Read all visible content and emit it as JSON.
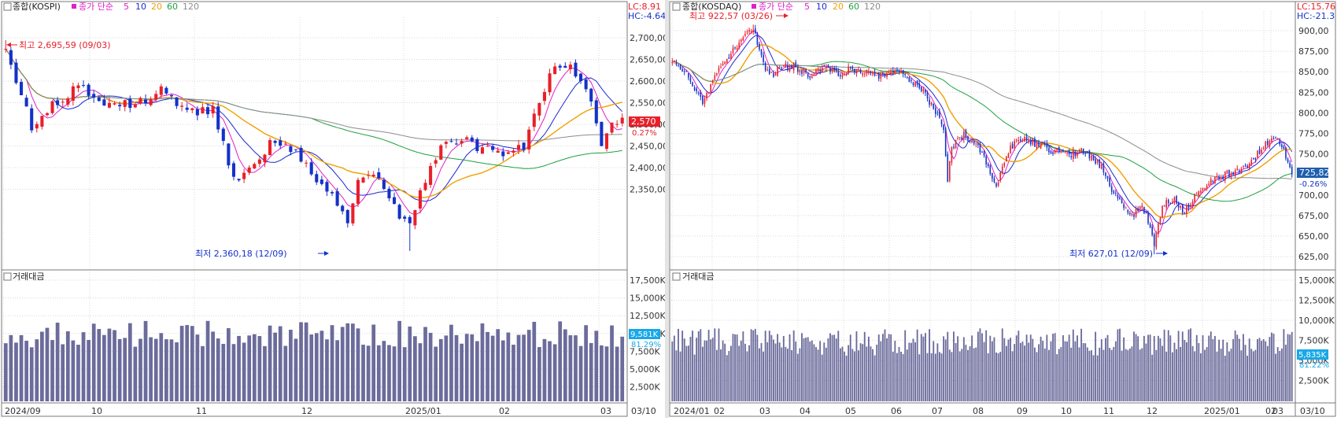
{
  "colors": {
    "up": "#e8202a",
    "down": "#1432c8",
    "ma5": "#e020c8",
    "ma10": "#1c2ad0",
    "ma20": "#f0a000",
    "ma60": "#20a040",
    "ma120": "#8c8c8c",
    "volume": "#6b6b9c",
    "grid": "#d8d8d8",
    "frame": "#7a7a7a",
    "axis_text": "#333333",
    "current_tag_left": "#e8202a",
    "current_tag_right": "#1f5fae",
    "vol_tag": "#18a8e8"
  },
  "chart_data": [
    {
      "type": "candlestick",
      "title": "종합(KOSPI)",
      "legend": {
        "label": "종가 단순",
        "periods": [
          "5",
          "10",
          "20",
          "60",
          "120"
        ]
      },
      "corner_info": {
        "lc": "LC:8.91",
        "hc": "HC:-4.64"
      },
      "y_ticks": [
        "2,700,00",
        "2,650,00",
        "2,600,00",
        "2,550,00",
        "2,500,00",
        "2,450,00",
        "2,400,00",
        "2,350,00"
      ],
      "ylim": [
        2340,
        2722
      ],
      "current_price": {
        "label": "2,570",
        "value": 2570,
        "change": "0.27%"
      },
      "annotations": {
        "high": {
          "text": "최고 2,695,59 (09/03)",
          "value": 2695.59
        },
        "low": {
          "text": "최저 2,360,18 (12/09)",
          "value": 2360.18
        }
      },
      "x_labels": [
        "2024/09",
        "10",
        "11",
        "12",
        "2025/01",
        "02",
        "03",
        "03/10"
      ],
      "key_points": [
        [
          0,
          2680
        ],
        [
          5,
          2560
        ],
        [
          10,
          2600
        ],
        [
          14,
          2620
        ],
        [
          20,
          2590
        ],
        [
          26,
          2600
        ],
        [
          30,
          2615
        ],
        [
          36,
          2580
        ],
        [
          40,
          2585
        ],
        [
          44,
          2470
        ],
        [
          47,
          2490
        ],
        [
          52,
          2540
        ],
        [
          56,
          2520
        ],
        [
          60,
          2465
        ],
        [
          63,
          2445
        ],
        [
          66,
          2400
        ],
        [
          68,
          2470
        ],
        [
          71,
          2490
        ],
        [
          74,
          2440
        ],
        [
          78,
          2400
        ],
        [
          82,
          2500
        ],
        [
          86,
          2540
        ],
        [
          90,
          2530
        ],
        [
          94,
          2520
        ],
        [
          97,
          2515
        ],
        [
          100,
          2530
        ],
        [
          103,
          2590
        ],
        [
          106,
          2660
        ],
        [
          109,
          2650
        ],
        [
          111,
          2630
        ],
        [
          113,
          2600
        ],
        [
          115,
          2520
        ],
        [
          117,
          2560
        ],
        [
          119,
          2570
        ]
      ],
      "volume": {
        "label": "거래대금",
        "y_ticks": [
          "17,500K",
          "15,000K",
          "12,500K",
          "10,000K",
          "7,500K",
          "5,000K",
          "2,500K"
        ],
        "ylim": [
          0,
          17500
        ],
        "current_label": "9,581K",
        "current_pct": "81.29%"
      }
    },
    {
      "type": "candlestick",
      "title": "종합(KOSDAQ)",
      "legend": {
        "label": "종가 단순",
        "periods": [
          "5",
          "10",
          "20",
          "60",
          "120"
        ]
      },
      "corner_info": {
        "lc": "LC:15.76",
        "hc": "HC:-21.3"
      },
      "y_ticks": [
        "900,00",
        "875,00",
        "850,00",
        "825,00",
        "800,00",
        "775,00",
        "750,00",
        "725,00",
        "700,00",
        "675,00",
        "650,00",
        "625,00"
      ],
      "ylim": [
        615,
        932
      ],
      "current_price": {
        "label": "725,82",
        "value": 725.82,
        "change": "-0.26%"
      },
      "annotations": {
        "high": {
          "text": "최고 922,57 (03/26)",
          "value": 922.57
        },
        "low": {
          "text": "최저 627,01 (12/09)",
          "value": 627.01
        }
      },
      "x_labels": [
        "2024/01",
        "02",
        "03",
        "04",
        "05",
        "06",
        "07",
        "08",
        "09",
        "10",
        "11",
        "12",
        "2025/01",
        "02",
        "03",
        "03/10"
      ],
      "key_points": [
        [
          0,
          880
        ],
        [
          8,
          855
        ],
        [
          15,
          820
        ],
        [
          22,
          860
        ],
        [
          30,
          890
        ],
        [
          36,
          910
        ],
        [
          40,
          918
        ],
        [
          44,
          880
        ],
        [
          48,
          855
        ],
        [
          54,
          868
        ],
        [
          60,
          870
        ],
        [
          68,
          855
        ],
        [
          76,
          868
        ],
        [
          82,
          860
        ],
        [
          90,
          866
        ],
        [
          96,
          860
        ],
        [
          104,
          855
        ],
        [
          112,
          865
        ],
        [
          118,
          848
        ],
        [
          124,
          838
        ],
        [
          130,
          810
        ],
        [
          134,
          790
        ],
        [
          136,
          720
        ],
        [
          138,
          765
        ],
        [
          144,
          780
        ],
        [
          150,
          770
        ],
        [
          156,
          740
        ],
        [
          160,
          715
        ],
        [
          166,
          760
        ],
        [
          172,
          775
        ],
        [
          180,
          770
        ],
        [
          188,
          760
        ],
        [
          196,
          755
        ],
        [
          204,
          760
        ],
        [
          212,
          740
        ],
        [
          218,
          705
        ],
        [
          224,
          685
        ],
        [
          228,
          680
        ],
        [
          232,
          690
        ],
        [
          236,
          665
        ],
        [
          238,
          640
        ],
        [
          242,
          690
        ],
        [
          248,
          700
        ],
        [
          252,
          680
        ],
        [
          258,
          700
        ],
        [
          266,
          720
        ],
        [
          272,
          728
        ],
        [
          278,
          735
        ],
        [
          284,
          740
        ],
        [
          290,
          760
        ],
        [
          296,
          775
        ],
        [
          300,
          770
        ],
        [
          304,
          750
        ],
        [
          306,
          726
        ]
      ],
      "volume": {
        "label": "거래대금",
        "y_ticks": [
          "15,000K",
          "12,500K",
          "10,000K",
          "7,500K",
          "5,000K",
          "2,500K"
        ],
        "ylim": [
          0,
          16000
        ],
        "current_label": "5,835K",
        "current_pct": "81.22%"
      }
    }
  ]
}
